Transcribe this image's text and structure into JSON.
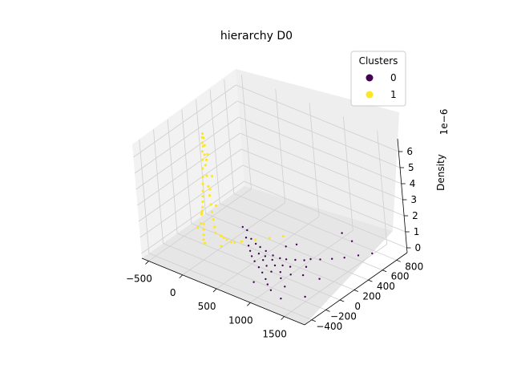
{
  "chart_data": {
    "type": "scatter",
    "title": "hierarchy D0",
    "xlabel": "",
    "ylabel": "",
    "zlabel": "Density",
    "z_offset_text": "1e−6",
    "x_ticks": [
      "−500",
      "0",
      "500",
      "1000",
      "1500"
    ],
    "y_ticks": [
      "−400",
      "−200",
      "0",
      "200",
      "400",
      "600",
      "800"
    ],
    "z_ticks": [
      "0",
      "1",
      "2",
      "3",
      "4",
      "5",
      "6"
    ],
    "xlim": [
      -600,
      1800
    ],
    "ylim": [
      -500,
      950
    ],
    "zlim": [
      -0.3,
      6.8
    ],
    "grid": true,
    "legend": {
      "title": "Clusters",
      "placement": "top-right",
      "entries": [
        {
          "label": "0",
          "color": "#440154"
        },
        {
          "label": "1",
          "color": "#fde725"
        }
      ]
    },
    "series": [
      {
        "name": "0",
        "color": "#440154",
        "description_of_distribution": "sparse tail, x 300-1600, y -400-800, low density",
        "points": [
          [
            420,
            -10,
            1.9
          ],
          [
            460,
            10,
            1.7
          ],
          [
            480,
            -30,
            1.4
          ],
          [
            500,
            20,
            1.2
          ],
          [
            520,
            -40,
            1.0
          ],
          [
            540,
            40,
            0.9
          ],
          [
            560,
            -60,
            0.8
          ],
          [
            580,
            60,
            0.7
          ],
          [
            600,
            -80,
            0.6
          ],
          [
            620,
            0,
            0.55
          ],
          [
            640,
            80,
            0.5
          ],
          [
            660,
            -100,
            0.45
          ],
          [
            680,
            30,
            0.4
          ],
          [
            700,
            -20,
            0.35
          ],
          [
            720,
            100,
            0.3
          ],
          [
            740,
            -120,
            0.28
          ],
          [
            760,
            50,
            0.25
          ],
          [
            780,
            -50,
            0.22
          ],
          [
            800,
            120,
            0.2
          ],
          [
            820,
            -150,
            0.18
          ],
          [
            840,
            10,
            0.16
          ],
          [
            860,
            150,
            0.14
          ],
          [
            880,
            -80,
            0.12
          ],
          [
            900,
            60,
            0.11
          ],
          [
            920,
            -200,
            0.1
          ],
          [
            940,
            200,
            0.09
          ],
          [
            960,
            -30,
            0.08
          ],
          [
            980,
            90,
            0.07
          ],
          [
            1000,
            -250,
            0.06
          ],
          [
            1020,
            250,
            0.05
          ],
          [
            1040,
            -100,
            0.05
          ],
          [
            1060,
            300,
            0.04
          ],
          [
            1080,
            0,
            0.04
          ],
          [
            1100,
            -300,
            0.03
          ],
          [
            1120,
            180,
            0.03
          ],
          [
            1150,
            350,
            0.02
          ],
          [
            1180,
            -180,
            0.02
          ],
          [
            1200,
            60,
            0.02
          ],
          [
            1250,
            420,
            0.01
          ],
          [
            1300,
            -350,
            0.01
          ],
          [
            1350,
            500,
            0.01
          ],
          [
            1400,
            100,
            0.01
          ],
          [
            1450,
            600,
            0.01
          ],
          [
            1500,
            -200,
            0.0
          ],
          [
            1550,
            700,
            0.0
          ],
          [
            1000,
            800,
            0.0
          ],
          [
            1200,
            750,
            0.0
          ],
          [
            700,
            300,
            0.2
          ],
          [
            750,
            400,
            0.1
          ],
          [
            850,
            -300,
            0.1
          ]
        ]
      },
      {
        "name": "1",
        "color": "#fde725",
        "description_of_distribution": "dense peak near x -300 to 300, y -100 to 200, max density about 6.3",
        "points": [
          [
            -200,
            100,
            6.3
          ],
          [
            -180,
            90,
            6.1
          ],
          [
            -220,
            110,
            6.0
          ],
          [
            -160,
            80,
            5.7
          ],
          [
            -240,
            120,
            5.6
          ],
          [
            -150,
            60,
            5.2
          ],
          [
            -260,
            130,
            5.0
          ],
          [
            -140,
            50,
            4.6
          ],
          [
            -280,
            140,
            4.4
          ],
          [
            -120,
            40,
            4.0
          ],
          [
            -300,
            150,
            3.8
          ],
          [
            -100,
            30,
            3.4
          ],
          [
            -320,
            160,
            3.2
          ],
          [
            -80,
            20,
            2.9
          ],
          [
            -340,
            170,
            2.7
          ],
          [
            -60,
            10,
            2.4
          ],
          [
            -360,
            180,
            2.2
          ],
          [
            -40,
            0,
            2.0
          ],
          [
            -380,
            190,
            1.8
          ],
          [
            -20,
            -10,
            1.6
          ],
          [
            -400,
            200,
            1.4
          ],
          [
            0,
            -20,
            1.2
          ],
          [
            -420,
            210,
            1.0
          ],
          [
            20,
            -30,
            0.9
          ],
          [
            -440,
            220,
            0.7
          ],
          [
            40,
            20,
            0.6
          ],
          [
            -460,
            230,
            0.5
          ],
          [
            60,
            40,
            0.45
          ],
          [
            -480,
            240,
            0.35
          ],
          [
            80,
            60,
            0.3
          ],
          [
            100,
            -40,
            0.25
          ],
          [
            -300,
            100,
            0.5
          ],
          [
            -250,
            50,
            0.4
          ],
          [
            -200,
            0,
            0.3
          ],
          [
            -150,
            -50,
            0.25
          ],
          [
            -100,
            -80,
            0.2
          ],
          [
            -350,
            60,
            0.3
          ],
          [
            -400,
            150,
            0.2
          ],
          [
            120,
            80,
            0.15
          ],
          [
            150,
            100,
            0.12
          ],
          [
            200,
            150,
            0.1
          ],
          [
            300,
            250,
            0.08
          ],
          [
            400,
            350,
            0.05
          ],
          [
            500,
            450,
            0.03
          ],
          [
            -200,
            200,
            1.5
          ],
          [
            -250,
            180,
            2.5
          ],
          [
            -180,
            160,
            3.5
          ],
          [
            -220,
            140,
            4.5
          ],
          [
            -170,
            120,
            5.0
          ],
          [
            -210,
            100,
            5.5
          ]
        ]
      }
    ]
  }
}
